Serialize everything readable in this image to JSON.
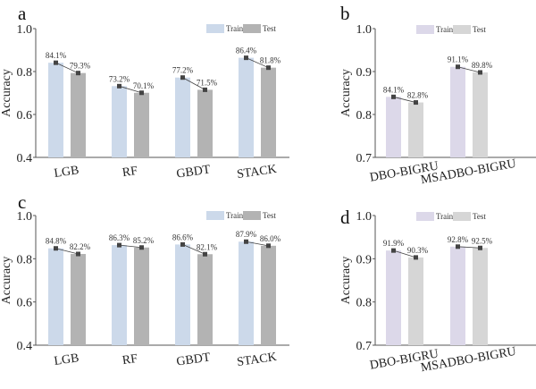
{
  "chart_data": [
    {
      "panel": "a",
      "type": "bar",
      "categories": [
        "LGB",
        "RF",
        "GBDT",
        "STACK"
      ],
      "series": [
        {
          "name": "Train",
          "values": [
            0.841,
            0.732,
            0.772,
            0.864
          ],
          "labels": [
            "84.1%",
            "73.2%",
            "77.2%",
            "86.4%"
          ],
          "color": "#ccd9ea"
        },
        {
          "name": "Test",
          "values": [
            0.793,
            0.701,
            0.715,
            0.818
          ],
          "labels": [
            "79.3%",
            "70.1%",
            "71.5%",
            "81.8%"
          ],
          "color": "#b3b3b3"
        }
      ],
      "ylabel": "Accuracy",
      "ylim": [
        0.4,
        1.0
      ],
      "yticks": [
        "0.4",
        "0.6",
        "0.8",
        "1.0"
      ],
      "legend": "top-right",
      "connector_line": true
    },
    {
      "panel": "b",
      "type": "bar",
      "categories": [
        "DBO-BIGRU",
        "MSADBO-BIGRU"
      ],
      "series": [
        {
          "name": "Train",
          "values": [
            0.841,
            0.911
          ],
          "labels": [
            "84.1%",
            "91.1%"
          ],
          "color": "#dcd8e9"
        },
        {
          "name": "Test",
          "values": [
            0.828,
            0.898
          ],
          "labels": [
            "82.8%",
            "89.8%"
          ],
          "color": "#d6d6d6"
        }
      ],
      "ylabel": "Accuracy",
      "ylim": [
        0.7,
        1.0
      ],
      "yticks": [
        "0.7",
        "0.8",
        "0.9",
        "1.0"
      ],
      "legend": "top",
      "connector_line": true
    },
    {
      "panel": "c",
      "type": "bar",
      "categories": [
        "LGB",
        "RF",
        "GBDT",
        "STACK"
      ],
      "series": [
        {
          "name": "Train",
          "values": [
            0.848,
            0.863,
            0.866,
            0.879
          ],
          "labels": [
            "84.8%",
            "86.3%",
            "86.6%",
            "87.9%"
          ],
          "color": "#ccd9ea"
        },
        {
          "name": "Test",
          "values": [
            0.822,
            0.852,
            0.821,
            0.86
          ],
          "labels": [
            "82.2%",
            "85.2%",
            "82.1%",
            "86.0%"
          ],
          "color": "#b3b3b3"
        }
      ],
      "ylabel": "Accuracy",
      "ylim": [
        0.4,
        1.0
      ],
      "yticks": [
        "0.4",
        "0.6",
        "0.8",
        "1.0"
      ],
      "legend": "top-right",
      "connector_line": true
    },
    {
      "panel": "d",
      "type": "bar",
      "categories": [
        "DBO-BIGRU",
        "MSADBO-BIGRU"
      ],
      "series": [
        {
          "name": "Train",
          "values": [
            0.919,
            0.928
          ],
          "labels": [
            "91.9%",
            "92.8%"
          ],
          "color": "#dcd8e9"
        },
        {
          "name": "Test",
          "values": [
            0.903,
            0.925
          ],
          "labels": [
            "90.3%",
            "92.5%"
          ],
          "color": "#d6d6d6"
        }
      ],
      "ylabel": "Accuracy",
      "ylim": [
        0.7,
        1.0
      ],
      "yticks": [
        "0.7",
        "0.8",
        "0.9",
        "1.0"
      ],
      "legend": "top",
      "connector_line": true
    }
  ]
}
